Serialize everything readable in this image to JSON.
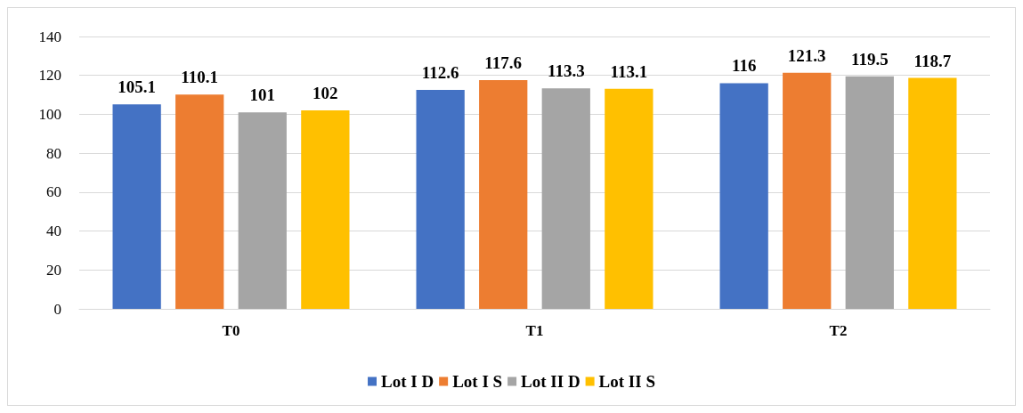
{
  "chart_data": {
    "type": "bar",
    "categories": [
      "T0",
      "T1",
      "T2"
    ],
    "series": [
      {
        "name": "Lot I D",
        "color": "#4472c4",
        "values": [
          105.1,
          112.6,
          116
        ]
      },
      {
        "name": "Lot I S",
        "color": "#ed7d31",
        "values": [
          110.1,
          117.6,
          121.3
        ]
      },
      {
        "name": "Lot II D",
        "color": "#a5a5a5",
        "values": [
          101,
          113.3,
          119.5
        ]
      },
      {
        "name": "Lot II S",
        "color": "#ffc000",
        "values": [
          102,
          113.1,
          118.7
        ]
      }
    ],
    "ylim": [
      0,
      140
    ],
    "yticks": [
      0,
      20,
      40,
      60,
      80,
      100,
      120,
      140
    ],
    "grid": "y",
    "legend": "bottom",
    "data_labels": true
  }
}
